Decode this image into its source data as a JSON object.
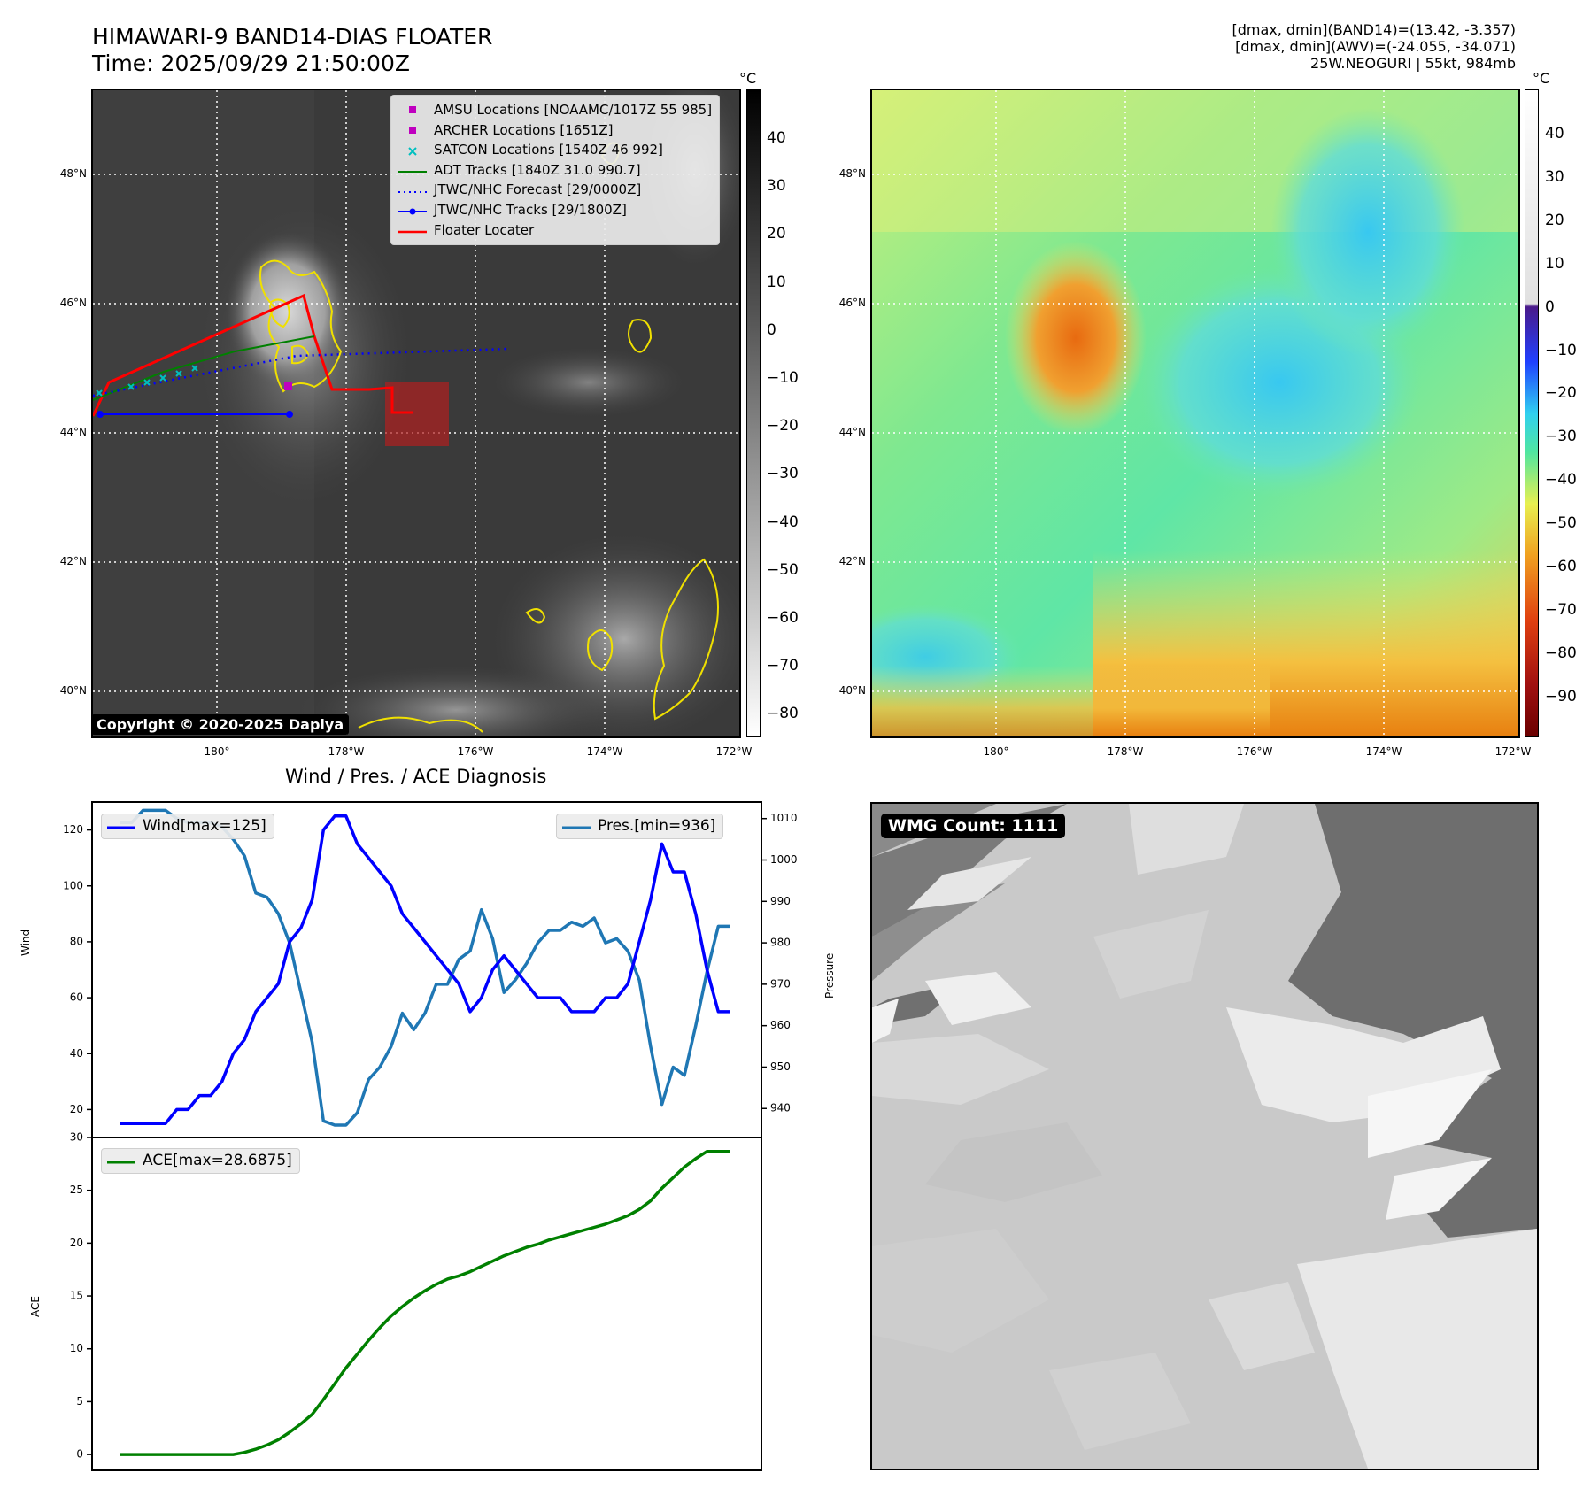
{
  "header": {
    "title_line1": "HIMAWARI-9 BAND14-DIAS FLOATER",
    "title_line2": "Time: 2025/09/29 21:50:00Z",
    "stats_line1": "[dmax, dmin](BAND14)=(13.42, -3.357)",
    "stats_line2": "[dmax, dmin](AWV)=(-24.055, -34.071)",
    "stats_line3": "25W.NEOGURI | 55kt, 984mb"
  },
  "map": {
    "lat_labels": [
      "48°N",
      "46°N",
      "44°N",
      "42°N",
      "40°N"
    ],
    "lon_labels": [
      "180°",
      "178°W",
      "176°W",
      "174°W",
      "172°W"
    ],
    "copyright": "Copyright © 2020-2025 Dapiya",
    "legend": [
      {
        "label": "AMSU Locations [NOAAMC/1017Z 55 985]",
        "kind": "square",
        "color": "#bf00bf"
      },
      {
        "label": "ARCHER Locations [1651Z]",
        "kind": "square",
        "color": "#bf00bf"
      },
      {
        "label": "SATCON Locations [1540Z 46 992]",
        "kind": "x",
        "color": "#00bfbf"
      },
      {
        "label": "ADT Tracks [1840Z 31.0 990.7]",
        "kind": "line",
        "color": "#008000"
      },
      {
        "label": "JTWC/NHC Forecast [29/0000Z]",
        "kind": "dotted",
        "color": "#0000ff"
      },
      {
        "label": "JTWC/NHC Tracks [29/1800Z]",
        "kind": "line-dot",
        "color": "#0000ff"
      },
      {
        "label": "Floater Locater",
        "kind": "line",
        "color": "#ff0000"
      }
    ]
  },
  "colorbars": {
    "unit": "°C",
    "ir_ticks": [
      "40",
      "30",
      "20",
      "10",
      "0",
      "−10",
      "−20",
      "−30",
      "−40",
      "−50",
      "−60",
      "−70",
      "−80"
    ],
    "wv_ticks": [
      "40",
      "30",
      "20",
      "10",
      "0",
      "−10",
      "−20",
      "−30",
      "−40",
      "−50",
      "−60",
      "−70",
      "−80",
      "−90"
    ]
  },
  "diagnosis": {
    "title": "Wind / Pres. / ACE Diagnosis",
    "wind_ylabel": "Wind",
    "pres_ylabel": "Pressure",
    "ace_ylabel": "ACE",
    "wind_legend": "Wind[max=125]",
    "pres_legend": "Pres.[min=936]",
    "ace_legend": "ACE[max=28.6875]",
    "wind_ticks": [
      "120",
      "100",
      "80",
      "60",
      "40",
      "20"
    ],
    "pres_ticks": [
      "1010",
      "1000",
      "990",
      "980",
      "970",
      "960",
      "950",
      "940"
    ],
    "ace_ticks": [
      "30",
      "25",
      "20",
      "15",
      "10",
      "5",
      "0"
    ]
  },
  "wmg": {
    "label": "WMG Count: 1111"
  },
  "chart_data": [
    {
      "type": "line",
      "title": "Wind / Pres. / ACE Diagnosis",
      "ylabel": "Wind",
      "ylim": [
        10,
        130
      ],
      "y2label": "Pressure",
      "y2lim": [
        933,
        1014
      ],
      "series": [
        {
          "name": "Wind[max=125]",
          "color": "#0000ff",
          "values": [
            15,
            15,
            15,
            15,
            15,
            20,
            20,
            25,
            25,
            30,
            40,
            45,
            55,
            60,
            65,
            80,
            85,
            95,
            120,
            125,
            125,
            115,
            110,
            105,
            100,
            90,
            85,
            80,
            75,
            70,
            65,
            55,
            60,
            70,
            75,
            70,
            65,
            60,
            60,
            60,
            55,
            55,
            55,
            60,
            60,
            65,
            80,
            95,
            115,
            105,
            105,
            90,
            70,
            55,
            55
          ]
        },
        {
          "name": "Pres.[min=936]",
          "color": "#1f77b4",
          "axis": "right",
          "values": [
            1009,
            1009,
            1012,
            1012,
            1012,
            1010,
            1009,
            1009,
            1009,
            1008,
            1005,
            1001,
            992,
            991,
            987,
            980,
            968,
            956,
            937,
            936,
            936,
            939,
            947,
            950,
            955,
            963,
            959,
            963,
            970,
            970,
            976,
            978,
            988,
            981,
            968,
            971,
            975,
            980,
            983,
            983,
            985,
            984,
            986,
            980,
            981,
            978,
            971,
            955,
            941,
            950,
            948,
            960,
            973,
            984,
            984
          ]
        }
      ]
    },
    {
      "type": "line",
      "ylabel": "ACE",
      "ylim": [
        -1.5,
        30
      ],
      "series": [
        {
          "name": "ACE[max=28.6875]",
          "color": "#008000",
          "values": [
            0,
            0,
            0,
            0,
            0,
            0,
            0,
            0,
            0,
            0,
            0,
            0.2,
            0.5,
            0.9,
            1.4,
            2.1,
            2.9,
            3.8,
            5.2,
            6.7,
            8.2,
            9.5,
            10.8,
            12.0,
            13.1,
            14.0,
            14.8,
            15.5,
            16.1,
            16.6,
            16.9,
            17.3,
            17.8,
            18.3,
            18.8,
            19.2,
            19.6,
            19.9,
            20.3,
            20.6,
            20.9,
            21.2,
            21.5,
            21.8,
            22.2,
            22.6,
            23.2,
            24.0,
            25.2,
            26.2,
            27.2,
            28.0,
            28.6875,
            28.6875,
            28.6875
          ]
        }
      ]
    }
  ]
}
